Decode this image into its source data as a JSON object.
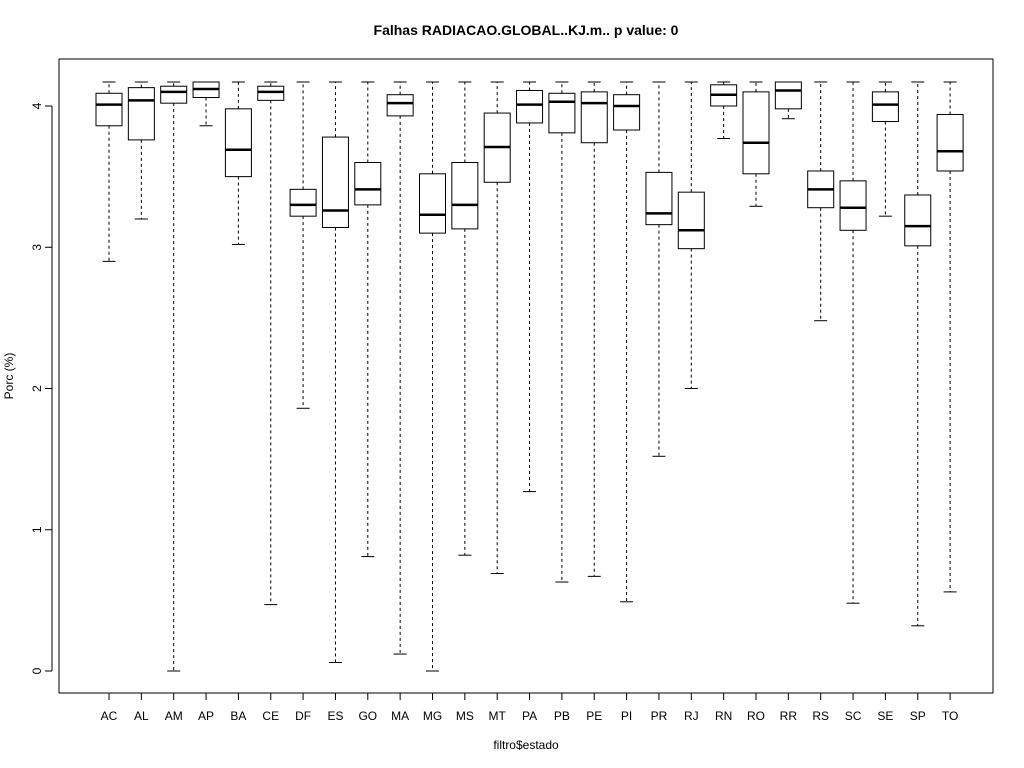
{
  "chart_data": {
    "type": "boxplot",
    "title": "Falhas RADIACAO.GLOBAL..KJ.m.. p value: 0",
    "xlabel": "filtro$estado",
    "ylabel": "Porc (%)",
    "ylim": [
      -0.16,
      4.32
    ],
    "yticks": [
      0,
      1,
      2,
      3,
      4
    ],
    "categories": [
      "AC",
      "AL",
      "AM",
      "AP",
      "BA",
      "CE",
      "DF",
      "ES",
      "GO",
      "MA",
      "MG",
      "MS",
      "MT",
      "PA",
      "PB",
      "PE",
      "PI",
      "PR",
      "RJ",
      "RN",
      "RO",
      "RR",
      "RS",
      "SC",
      "SE",
      "SP",
      "TO"
    ],
    "boxes": [
      {
        "min": 2.9,
        "q1": 3.86,
        "median": 4.01,
        "q3": 4.09,
        "max": 4.17
      },
      {
        "min": 3.2,
        "q1": 3.76,
        "median": 4.04,
        "q3": 4.13,
        "max": 4.17
      },
      {
        "min": 0.0,
        "q1": 4.02,
        "median": 4.1,
        "q3": 4.14,
        "max": 4.17
      },
      {
        "min": 3.86,
        "q1": 4.06,
        "median": 4.12,
        "q3": 4.17,
        "max": 4.17
      },
      {
        "min": 3.02,
        "q1": 3.5,
        "median": 3.69,
        "q3": 3.98,
        "max": 4.17
      },
      {
        "min": 0.47,
        "q1": 4.04,
        "median": 4.1,
        "q3": 4.14,
        "max": 4.17
      },
      {
        "min": 1.86,
        "q1": 3.22,
        "median": 3.3,
        "q3": 3.41,
        "max": 4.17
      },
      {
        "min": 0.06,
        "q1": 3.14,
        "median": 3.26,
        "q3": 3.78,
        "max": 4.17
      },
      {
        "min": 0.81,
        "q1": 3.3,
        "median": 3.41,
        "q3": 3.6,
        "max": 4.17
      },
      {
        "min": 0.12,
        "q1": 3.93,
        "median": 4.02,
        "q3": 4.08,
        "max": 4.17
      },
      {
        "min": 0.0,
        "q1": 3.1,
        "median": 3.23,
        "q3": 3.52,
        "max": 4.17
      },
      {
        "min": 0.82,
        "q1": 3.13,
        "median": 3.3,
        "q3": 3.6,
        "max": 4.17
      },
      {
        "min": 0.69,
        "q1": 3.46,
        "median": 3.71,
        "q3": 3.95,
        "max": 4.17
      },
      {
        "min": 1.27,
        "q1": 3.88,
        "median": 4.01,
        "q3": 4.11,
        "max": 4.17
      },
      {
        "min": 0.63,
        "q1": 3.81,
        "median": 4.03,
        "q3": 4.09,
        "max": 4.17
      },
      {
        "min": 0.67,
        "q1": 3.74,
        "median": 4.02,
        "q3": 4.1,
        "max": 4.17
      },
      {
        "min": 0.49,
        "q1": 3.83,
        "median": 4.0,
        "q3": 4.08,
        "max": 4.17
      },
      {
        "min": 1.52,
        "q1": 3.16,
        "median": 3.24,
        "q3": 3.53,
        "max": 4.17
      },
      {
        "min": 2.0,
        "q1": 2.99,
        "median": 3.12,
        "q3": 3.39,
        "max": 4.17
      },
      {
        "min": 3.77,
        "q1": 4.0,
        "median": 4.08,
        "q3": 4.15,
        "max": 4.17
      },
      {
        "min": 3.29,
        "q1": 3.52,
        "median": 3.74,
        "q3": 4.1,
        "max": 4.17
      },
      {
        "min": 3.91,
        "q1": 3.98,
        "median": 4.11,
        "q3": 4.17,
        "max": 4.17
      },
      {
        "min": 2.48,
        "q1": 3.28,
        "median": 3.41,
        "q3": 3.54,
        "max": 4.17
      },
      {
        "min": 0.48,
        "q1": 3.12,
        "median": 3.28,
        "q3": 3.47,
        "max": 4.17
      },
      {
        "min": 3.22,
        "q1": 3.89,
        "median": 4.01,
        "q3": 4.1,
        "max": 4.17
      },
      {
        "min": 0.32,
        "q1": 3.01,
        "median": 3.15,
        "q3": 3.37,
        "max": 4.17
      },
      {
        "min": 0.56,
        "q1": 3.54,
        "median": 3.68,
        "q3": 3.94,
        "max": 4.17
      }
    ],
    "grid": false,
    "legend": "none"
  }
}
